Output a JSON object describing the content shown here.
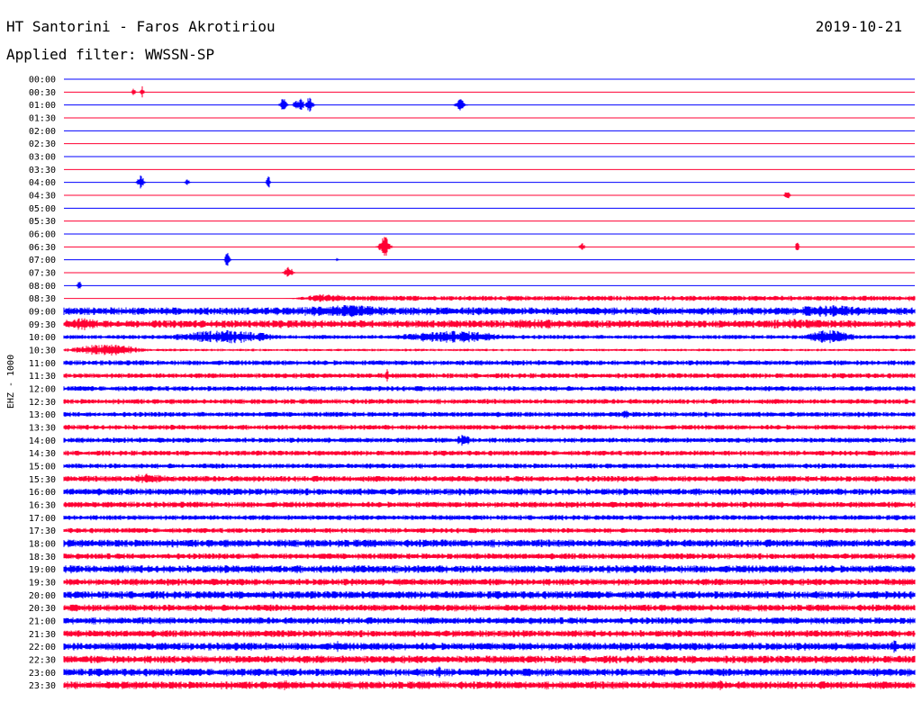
{
  "header": {
    "station": "HT Santorini - Faros Akrotiriou",
    "date": "2019-10-21",
    "filter": "Applied filter: WWSSN-SP"
  },
  "chart_data": {
    "type": "line",
    "title": "HT Santorini - Faros Akrotiriou",
    "ylabel": "EHZ - 1000",
    "colors": {
      "even_row": "#0000ff",
      "odd_row": "#ff0033"
    },
    "time_axis_minutes": [
      0,
      30
    ],
    "rows": [
      {
        "label": "00:00",
        "noise": 0.0,
        "events": []
      },
      {
        "label": "00:30",
        "noise": 0.0,
        "events": [
          {
            "x": 0.082,
            "amp": 5,
            "w": 0.002
          },
          {
            "x": 0.092,
            "amp": 7,
            "w": 0.002
          }
        ]
      },
      {
        "label": "01:00",
        "noise": 0.0,
        "events": [
          {
            "x": 0.258,
            "amp": 8,
            "w": 0.004
          },
          {
            "x": 0.272,
            "amp": 6,
            "w": 0.003
          },
          {
            "x": 0.278,
            "amp": 9,
            "w": 0.004
          },
          {
            "x": 0.289,
            "amp": 10,
            "w": 0.004
          },
          {
            "x": 0.466,
            "amp": 8,
            "w": 0.005
          }
        ]
      },
      {
        "label": "01:30",
        "noise": 0.0,
        "events": []
      },
      {
        "label": "02:00",
        "noise": 0.0,
        "events": []
      },
      {
        "label": "02:30",
        "noise": 0.0,
        "events": []
      },
      {
        "label": "03:00",
        "noise": 0.0,
        "events": []
      },
      {
        "label": "03:30",
        "noise": 0.0,
        "events": []
      },
      {
        "label": "04:00",
        "noise": 0.0,
        "events": [
          {
            "x": 0.09,
            "amp": 9,
            "w": 0.004
          },
          {
            "x": 0.145,
            "amp": 4,
            "w": 0.003
          },
          {
            "x": 0.24,
            "amp": 9,
            "w": 0.002
          }
        ]
      },
      {
        "label": "04:30",
        "noise": 0.0,
        "events": [
          {
            "x": 0.85,
            "amp": 6,
            "w": 0.003
          }
        ]
      },
      {
        "label": "05:00",
        "noise": 0.0,
        "events": []
      },
      {
        "label": "05:30",
        "noise": 0.0,
        "events": []
      },
      {
        "label": "06:00",
        "noise": 0.0,
        "events": []
      },
      {
        "label": "06:30",
        "noise": 0.0,
        "events": [
          {
            "x": 0.377,
            "amp": 13,
            "w": 0.006
          },
          {
            "x": 0.609,
            "amp": 5,
            "w": 0.003
          },
          {
            "x": 0.862,
            "amp": 7,
            "w": 0.002
          }
        ]
      },
      {
        "label": "07:00",
        "noise": 0.0,
        "events": [
          {
            "x": 0.192,
            "amp": 8,
            "w": 0.003
          },
          {
            "x": 0.321,
            "amp": 2,
            "w": 0.002
          }
        ]
      },
      {
        "label": "07:30",
        "noise": 0.0,
        "events": [
          {
            "x": 0.264,
            "amp": 8,
            "w": 0.005
          }
        ]
      },
      {
        "label": "08:00",
        "noise": 0.0,
        "events": [
          {
            "x": 0.018,
            "amp": 10,
            "w": 0.002
          }
        ]
      },
      {
        "label": "08:30",
        "noise": 3.0,
        "start": 0.3,
        "events": [
          {
            "x": 0.31,
            "amp": 5,
            "w": 0.03
          }
        ]
      },
      {
        "label": "09:00",
        "noise": 4.5,
        "events": [
          {
            "x": 0.33,
            "amp": 7,
            "w": 0.08
          },
          {
            "x": 0.9,
            "amp": 7,
            "w": 0.06
          }
        ]
      },
      {
        "label": "09:30",
        "noise": 4.5,
        "events": [
          {
            "x": 0.02,
            "amp": 7,
            "w": 0.03
          },
          {
            "x": 0.55,
            "amp": 6,
            "w": 0.06
          },
          {
            "x": 0.86,
            "amp": 6,
            "w": 0.06
          }
        ]
      },
      {
        "label": "10:00",
        "noise": 2.5,
        "events": [
          {
            "x": 0.19,
            "amp": 8,
            "w": 0.06
          },
          {
            "x": 0.46,
            "amp": 7,
            "w": 0.07
          },
          {
            "x": 0.9,
            "amp": 8,
            "w": 0.03
          }
        ]
      },
      {
        "label": "10:30",
        "noise": 1.5,
        "events": [
          {
            "x": 0.05,
            "amp": 7,
            "w": 0.04
          }
        ]
      },
      {
        "label": "11:00",
        "noise": 3.0,
        "events": []
      },
      {
        "label": "11:30",
        "noise": 3.0,
        "events": [
          {
            "x": 0.38,
            "amp": 8,
            "w": 0.002
          }
        ]
      },
      {
        "label": "12:00",
        "noise": 3.0,
        "events": []
      },
      {
        "label": "12:30",
        "noise": 3.0,
        "events": []
      },
      {
        "label": "13:00",
        "noise": 3.0,
        "events": [
          {
            "x": 0.66,
            "amp": 6,
            "w": 0.003
          }
        ]
      },
      {
        "label": "13:30",
        "noise": 3.0,
        "events": []
      },
      {
        "label": "14:00",
        "noise": 3.0,
        "events": [
          {
            "x": 0.47,
            "amp": 7,
            "w": 0.01
          }
        ]
      },
      {
        "label": "14:30",
        "noise": 3.0,
        "events": []
      },
      {
        "label": "15:00",
        "noise": 3.0,
        "events": []
      },
      {
        "label": "15:30",
        "noise": 3.5,
        "events": [
          {
            "x": 0.1,
            "amp": 6,
            "w": 0.03
          }
        ]
      },
      {
        "label": "16:00",
        "noise": 4.0,
        "events": []
      },
      {
        "label": "16:30",
        "noise": 3.5,
        "events": []
      },
      {
        "label": "17:00",
        "noise": 3.0,
        "events": []
      },
      {
        "label": "17:30",
        "noise": 3.0,
        "events": []
      },
      {
        "label": "18:00",
        "noise": 4.5,
        "events": []
      },
      {
        "label": "18:30",
        "noise": 3.5,
        "events": []
      },
      {
        "label": "19:00",
        "noise": 4.5,
        "events": []
      },
      {
        "label": "19:30",
        "noise": 4.0,
        "events": []
      },
      {
        "label": "20:00",
        "noise": 4.5,
        "events": []
      },
      {
        "label": "20:30",
        "noise": 4.0,
        "events": []
      },
      {
        "label": "21:00",
        "noise": 4.0,
        "events": []
      },
      {
        "label": "21:30",
        "noise": 4.0,
        "events": []
      },
      {
        "label": "22:00",
        "noise": 4.5,
        "events": [
          {
            "x": 0.32,
            "amp": 8,
            "w": 0.004
          },
          {
            "x": 0.976,
            "amp": 9,
            "w": 0.004
          }
        ]
      },
      {
        "label": "22:30",
        "noise": 4.5,
        "events": []
      },
      {
        "label": "23:00",
        "noise": 4.5,
        "events": [
          {
            "x": 0.44,
            "amp": 8,
            "w": 0.005
          }
        ]
      },
      {
        "label": "23:30",
        "noise": 4.5,
        "events": [
          {
            "x": 0.26,
            "amp": 8,
            "w": 0.004
          },
          {
            "x": 0.77,
            "amp": 8,
            "w": 0.004
          }
        ]
      }
    ]
  }
}
